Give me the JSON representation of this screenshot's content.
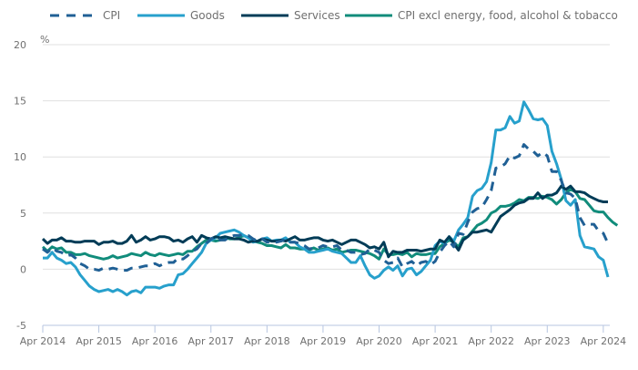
{
  "chart_data": {
    "type": "line",
    "title": "",
    "xlabel": "",
    "ylabel": "%",
    "ylim": [
      -5,
      20
    ],
    "yticks": [
      -5,
      0,
      5,
      10,
      15,
      20
    ],
    "grid": true,
    "legend_position": "top",
    "x_start": "Apr 2014",
    "x_end": "Apr 2024",
    "x_frequency": "monthly",
    "xtick_labels": [
      "Apr 2014",
      "Apr 2015",
      "Apr 2016",
      "Apr 2017",
      "Apr 2018",
      "Apr 2019",
      "Apr 2020",
      "Apr 2021",
      "Apr 2022",
      "Apr 2023",
      "Apr 2024"
    ],
    "series": [
      {
        "name": "CPI",
        "color": "#206095",
        "dashed": true,
        "values": [
          1.8,
          1.5,
          1.9,
          1.6,
          1.5,
          1.2,
          1.3,
          1.0,
          0.5,
          0.3,
          0.0,
          0.0,
          -0.1,
          0.1,
          0.0,
          0.1,
          0.0,
          -0.1,
          -0.1,
          0.1,
          0.1,
          0.2,
          0.3,
          0.3,
          0.5,
          0.3,
          0.5,
          0.6,
          0.6,
          1.0,
          0.9,
          1.2,
          1.6,
          1.8,
          2.3,
          2.3,
          2.7,
          2.9,
          2.6,
          2.6,
          2.9,
          3.0,
          3.0,
          3.1,
          3.0,
          2.7,
          2.5,
          2.7,
          2.4,
          2.4,
          2.4,
          2.5,
          2.7,
          2.4,
          2.4,
          2.3,
          2.1,
          1.8,
          1.9,
          1.9,
          2.1,
          2.0,
          2.0,
          2.1,
          1.7,
          1.7,
          1.5,
          1.5,
          1.3,
          1.4,
          1.8,
          1.7,
          1.5,
          0.8,
          0.5,
          0.6,
          1.0,
          0.2,
          0.5,
          0.7,
          0.3,
          0.6,
          0.7,
          0.4,
          0.7,
          1.5,
          2.1,
          2.5,
          2.0,
          3.2,
          3.1,
          4.2,
          5.1,
          5.4,
          5.5,
          6.2,
          7.0,
          9.0,
          9.1,
          9.4,
          10.1,
          9.9,
          10.1,
          11.1,
          10.7,
          10.5,
          10.1,
          10.4,
          10.1,
          8.7,
          8.7,
          7.9,
          6.8,
          6.7,
          6.3,
          4.6,
          3.9,
          4.0,
          4.0,
          3.4,
          3.2,
          2.3
        ]
      },
      {
        "name": "Goods",
        "color": "#27a0cc",
        "dashed": false,
        "values": [
          1.0,
          1.0,
          1.5,
          1.0,
          0.8,
          0.5,
          0.6,
          0.2,
          -0.5,
          -1.0,
          -1.5,
          -1.8,
          -2.0,
          -1.9,
          -1.8,
          -2.0,
          -1.8,
          -2.0,
          -2.3,
          -2.0,
          -1.9,
          -2.1,
          -1.6,
          -1.6,
          -1.6,
          -1.7,
          -1.5,
          -1.4,
          -1.4,
          -0.5,
          -0.4,
          0.0,
          0.5,
          1.0,
          1.5,
          2.3,
          2.6,
          2.8,
          3.2,
          3.3,
          3.4,
          3.5,
          3.3,
          3.0,
          2.8,
          2.4,
          2.5,
          2.7,
          2.8,
          2.5,
          2.6,
          2.6,
          2.8,
          2.4,
          2.4,
          2.0,
          1.8,
          1.5,
          1.5,
          1.6,
          1.7,
          1.8,
          1.6,
          1.5,
          1.4,
          1.0,
          0.6,
          0.6,
          1.2,
          0.3,
          -0.5,
          -0.8,
          -0.6,
          -0.1,
          0.2,
          -0.1,
          0.3,
          -0.6,
          0.0,
          0.1,
          -0.5,
          -0.2,
          0.3,
          0.8,
          2.1,
          2.5,
          2.3,
          2.9,
          2.5,
          3.5,
          4.0,
          4.6,
          6.5,
          7.0,
          7.2,
          7.8,
          9.5,
          12.4,
          12.4,
          12.6,
          13.6,
          13.0,
          13.2,
          14.9,
          14.2,
          13.4,
          13.3,
          13.4,
          12.8,
          10.5,
          9.4,
          8.0,
          6.1,
          5.7,
          6.2,
          3.0,
          2.0,
          1.9,
          1.8,
          1.1,
          0.8,
          -0.7
        ]
      },
      {
        "name": "Services",
        "color": "#003c57",
        "dashed": false,
        "values": [
          2.7,
          2.3,
          2.6,
          2.6,
          2.8,
          2.5,
          2.5,
          2.4,
          2.4,
          2.5,
          2.5,
          2.5,
          2.2,
          2.4,
          2.4,
          2.5,
          2.3,
          2.3,
          2.5,
          3.0,
          2.4,
          2.6,
          2.9,
          2.6,
          2.7,
          2.9,
          2.9,
          2.8,
          2.5,
          2.6,
          2.4,
          2.7,
          2.9,
          2.4,
          3.0,
          2.8,
          2.7,
          2.9,
          2.8,
          2.9,
          2.8,
          2.7,
          2.7,
          2.6,
          2.4,
          2.5,
          2.5,
          2.7,
          2.6,
          2.5,
          2.5,
          2.6,
          2.5,
          2.7,
          2.9,
          2.6,
          2.6,
          2.7,
          2.8,
          2.8,
          2.6,
          2.5,
          2.6,
          2.4,
          2.2,
          2.4,
          2.6,
          2.6,
          2.4,
          2.2,
          1.9,
          2.0,
          1.8,
          2.4,
          1.1,
          1.6,
          1.5,
          1.5,
          1.7,
          1.7,
          1.7,
          1.6,
          1.7,
          1.8,
          1.8,
          2.6,
          2.4,
          2.9,
          2.3,
          1.7,
          2.6,
          2.9,
          3.3,
          3.3,
          3.4,
          3.5,
          3.3,
          4.0,
          4.7,
          5.0,
          5.3,
          5.7,
          5.9,
          6.0,
          6.3,
          6.3,
          6.8,
          6.3,
          6.6,
          6.6,
          6.8,
          7.4,
          7.1,
          7.4,
          6.9,
          6.9,
          6.8,
          6.5,
          6.3,
          6.1,
          6.0,
          6.0
        ]
      },
      {
        "name": "CPI excl energy, food, alcohol & tobacco",
        "color": "#118c7b",
        "dashed": false,
        "values": [
          2.0,
          1.6,
          2.0,
          1.8,
          1.9,
          1.5,
          1.5,
          1.3,
          1.3,
          1.4,
          1.2,
          1.1,
          1.0,
          0.9,
          1.0,
          1.2,
          1.0,
          1.1,
          1.2,
          1.4,
          1.3,
          1.2,
          1.5,
          1.3,
          1.2,
          1.4,
          1.3,
          1.2,
          1.3,
          1.4,
          1.3,
          1.6,
          1.6,
          2.0,
          2.3,
          2.6,
          2.6,
          2.5,
          2.6,
          2.8,
          2.7,
          2.7,
          2.8,
          3.0,
          2.8,
          2.5,
          2.4,
          2.3,
          2.1,
          2.1,
          2.0,
          1.9,
          2.2,
          1.9,
          1.9,
          1.8,
          1.8,
          1.7,
          1.9,
          1.7,
          1.8,
          1.9,
          1.7,
          1.8,
          1.5,
          1.6,
          1.7,
          1.7,
          1.6,
          1.5,
          1.4,
          1.2,
          0.9,
          1.8,
          1.3,
          1.3,
          1.4,
          1.3,
          1.5,
          1.1,
          1.4,
          1.3,
          1.3,
          1.4,
          1.4,
          2.0,
          2.3,
          2.6,
          2.4,
          2.0,
          2.8,
          2.9,
          3.4,
          3.9,
          4.1,
          4.4,
          5.0,
          5.2,
          5.6,
          5.6,
          5.7,
          5.9,
          6.2,
          6.1,
          6.4,
          6.4,
          6.3,
          6.5,
          6.4,
          6.2,
          5.8,
          6.2,
          6.8,
          7.1,
          6.9,
          6.3,
          6.2,
          5.7,
          5.2,
          5.1,
          5.1,
          4.6,
          4.2,
          3.9
        ]
      }
    ]
  },
  "legend": {
    "items": [
      "CPI",
      "Goods",
      "Services",
      "CPI excl energy, food, alcohol & tobacco"
    ]
  },
  "axis": {
    "y_unit": "%",
    "y_tick_labels": [
      "20",
      "15",
      "10",
      "5",
      "0",
      "-5"
    ]
  }
}
